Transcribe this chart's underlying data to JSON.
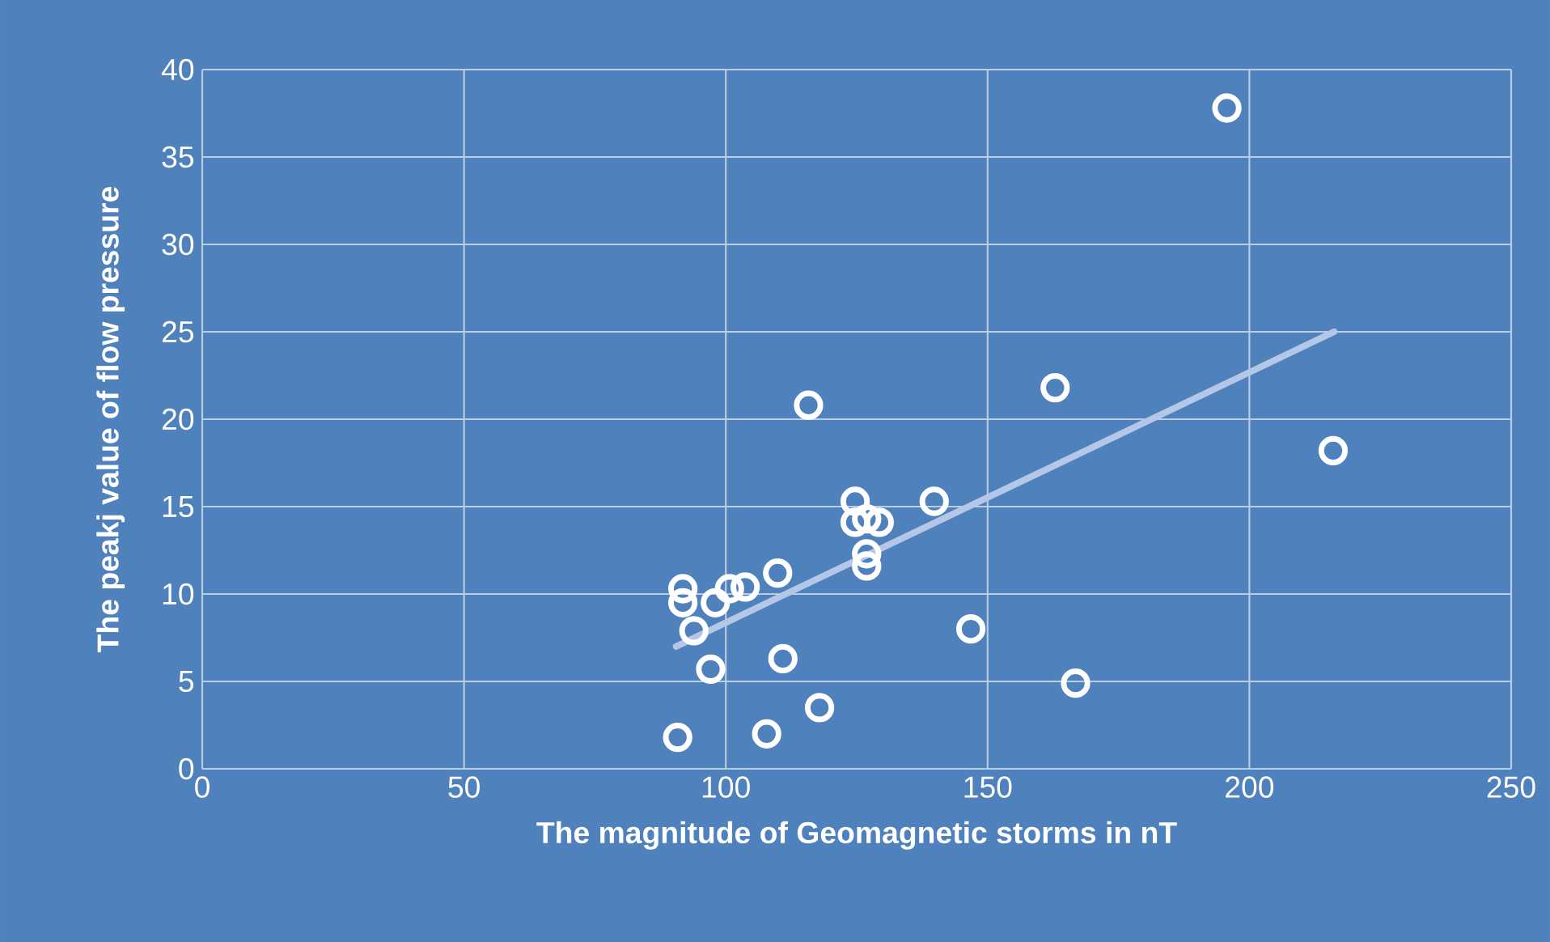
{
  "chart_data": {
    "type": "scatter",
    "xlabel": "The magnitude of  Geomagnetic storms in nT",
    "ylabel": "The peakj value of  flow pressure",
    "xlim": [
      0,
      250
    ],
    "xticks": [
      0,
      50,
      100,
      150,
      200,
      250
    ],
    "ylim": [
      0,
      40
    ],
    "yticks": [
      0,
      5,
      10,
      15,
      20,
      25,
      30,
      35,
      40
    ],
    "grid": true,
    "marker": "circle",
    "series": [
      {
        "color": "#ffffff",
        "x": [
          90.8,
          91.8,
          91.8,
          93.9,
          97.1,
          98.0,
          100.7,
          103.7,
          107.8,
          109.9,
          110.9,
          115.8,
          117.9,
          124.7,
          124.7,
          126.9,
          129.3,
          126.9,
          126.9,
          139.8,
          146.8,
          162.9,
          166.8,
          195.7,
          216.0
        ],
        "values": [
          1.8,
          10.3,
          9.5,
          7.9,
          5.7,
          9.5,
          10.3,
          10.4,
          2.0,
          11.2,
          6.3,
          20.8,
          3.5,
          15.3,
          14.1,
          14.3,
          14.1,
          12.3,
          11.6,
          15.3,
          8.0,
          21.8,
          4.9,
          37.8,
          18.2
        ]
      },
      {
        "type": "line",
        "color": "#b4c7e7",
        "marker": "none",
        "x": [
          90.5,
          216.2
        ],
        "values": [
          7.0,
          25.0
        ]
      }
    ]
  }
}
